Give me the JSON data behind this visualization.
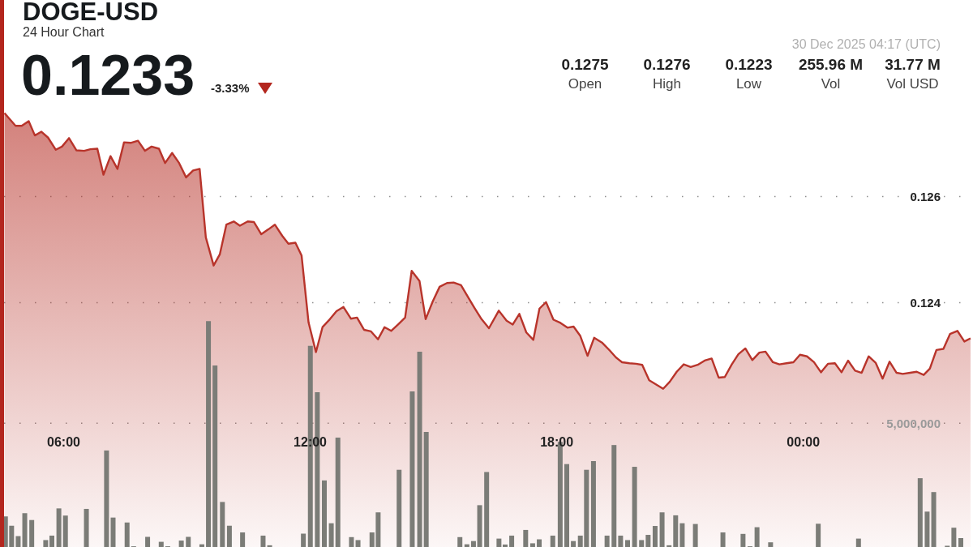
{
  "chart_data": {
    "type": "area",
    "title": "DOGE-USD",
    "subtitle": "24 Hour Chart",
    "annotations": [
      "0.1233",
      "-3.33%",
      "30 Dec 2025 04:17 (UTC)",
      "0.1275",
      "Open",
      "0.1276",
      "High",
      "0.1223",
      "Low",
      "255.96 M",
      "Vol",
      "31.77 M",
      "Vol USD"
    ],
    "xlim": [
      4.55,
      28.13
    ],
    "xticks": [
      {
        "value": 6,
        "label": "06:00"
      },
      {
        "value": 12,
        "label": "12:00"
      },
      {
        "value": 18,
        "label": "18:00"
      },
      {
        "value": 24,
        "label": "00:00"
      }
    ],
    "ylim": [
      0.1194,
      0.1297
    ],
    "yticks": [
      0.124,
      0.126
    ],
    "y2lim": [
      0,
      22100000
    ],
    "y2ticks": [
      {
        "value": 5000000,
        "label": "5,000,000"
      }
    ],
    "grid": "y",
    "series": [
      {
        "color": "#b8342b",
        "x": [
          4.56,
          4.83,
          4.98,
          5.15,
          5.3,
          5.46,
          5.62,
          5.81,
          5.96,
          6.13,
          6.31,
          6.5,
          6.65,
          6.82,
          6.97,
          7.14,
          7.31,
          7.47,
          7.63,
          7.81,
          7.98,
          8.14,
          8.32,
          8.47,
          8.64,
          8.81,
          8.98,
          9.15,
          9.31,
          9.46,
          9.65,
          9.8,
          9.96,
          10.14,
          10.29,
          10.48,
          10.63,
          10.81,
          10.98,
          11.14,
          11.32,
          11.47,
          11.64,
          11.79,
          11.96,
          12.14,
          12.3,
          12.48,
          12.64,
          12.81,
          12.99,
          13.14,
          13.31,
          13.48,
          13.65,
          13.81,
          13.97,
          14.15,
          14.31,
          14.47,
          14.66,
          14.81,
          14.98,
          15.15,
          15.33,
          15.49,
          15.67,
          15.83,
          16.0,
          16.17,
          16.35,
          16.59,
          16.78,
          16.93,
          17.09,
          17.26,
          17.43,
          17.58,
          17.74,
          17.92,
          18.09,
          18.26,
          18.41,
          18.57,
          18.75,
          18.91,
          19.1,
          19.29,
          19.44,
          19.59,
          19.77,
          19.93,
          20.08,
          20.25,
          20.42,
          20.59,
          20.75,
          20.92,
          21.09,
          21.26,
          21.43,
          21.6,
          21.77,
          21.94,
          22.09,
          22.26,
          22.42,
          22.59,
          22.76,
          22.93,
          23.08,
          23.26,
          23.42,
          23.59,
          23.76,
          23.92,
          24.09,
          24.26,
          24.43,
          24.6,
          24.77,
          24.93,
          25.09,
          25.26,
          25.42,
          25.59,
          25.76,
          25.93,
          26.1,
          26.27,
          26.42,
          26.6,
          26.76,
          26.93,
          27.08,
          27.24,
          27.41,
          27.57,
          27.75,
          27.92,
          28.07
        ],
        "values": [
          0.12757,
          0.12733,
          0.12733,
          0.12742,
          0.12715,
          0.12722,
          0.12711,
          0.12688,
          0.12694,
          0.1271,
          0.12687,
          0.12686,
          0.12689,
          0.1269,
          0.12641,
          0.12676,
          0.12652,
          0.12702,
          0.12701,
          0.12705,
          0.12686,
          0.12694,
          0.1269,
          0.12663,
          0.12682,
          0.12663,
          0.12636,
          0.12649,
          0.12652,
          0.12523,
          0.1247,
          0.12491,
          0.12547,
          0.12553,
          0.12545,
          0.12553,
          0.12552,
          0.12529,
          0.12538,
          0.12547,
          0.12526,
          0.12511,
          0.12513,
          0.12489,
          0.12363,
          0.12307,
          0.12354,
          0.12369,
          0.12384,
          0.12392,
          0.1237,
          0.12372,
          0.12349,
          0.12346,
          0.12331,
          0.12354,
          0.12347,
          0.1236,
          0.12372,
          0.1246,
          0.12441,
          0.12369,
          0.12402,
          0.1243,
          0.12437,
          0.12438,
          0.12433,
          0.12412,
          0.1239,
          0.12369,
          0.12352,
          0.12385,
          0.12366,
          0.12359,
          0.12379,
          0.12344,
          0.1233,
          0.12389,
          0.12401,
          0.12368,
          0.12362,
          0.12353,
          0.12355,
          0.12338,
          0.123,
          0.12334,
          0.12325,
          0.1231,
          0.12297,
          0.12288,
          0.12286,
          0.12285,
          0.12283,
          0.12254,
          0.12246,
          0.12238,
          0.12251,
          0.1227,
          0.12284,
          0.12279,
          0.12283,
          0.12291,
          0.12295,
          0.12259,
          0.1226,
          0.12284,
          0.12303,
          0.12314,
          0.12292,
          0.12306,
          0.12308,
          0.12288,
          0.12284,
          0.12286,
          0.12288,
          0.12302,
          0.12299,
          0.12288,
          0.12269,
          0.12285,
          0.12286,
          0.12269,
          0.12291,
          0.12272,
          0.12268,
          0.12299,
          0.12287,
          0.12257,
          0.12289,
          0.12268,
          0.12266,
          0.12268,
          0.1227,
          0.12264,
          0.12276,
          0.12311,
          0.12313,
          0.12341,
          0.12347,
          0.12327,
          0.12333
        ]
      },
      {
        "type": "bar",
        "axis": "y2",
        "color": "#7b7c77",
        "x": [
          4.58,
          4.73,
          4.89,
          5.05,
          5.22,
          5.56,
          5.71,
          5.88,
          6.04,
          6.55,
          7.04,
          7.2,
          7.54,
          7.7,
          8.04,
          8.37,
          8.53,
          8.86,
          9.03,
          9.36,
          9.52,
          9.68,
          9.86,
          10.03,
          10.35,
          10.85,
          11.01,
          11.83,
          12.0,
          12.17,
          12.34,
          12.51,
          12.67,
          13.0,
          13.16,
          13.5,
          13.65,
          14.16,
          14.48,
          14.66,
          14.82,
          15.64,
          15.81,
          15.97,
          16.12,
          16.29,
          16.59,
          16.74,
          16.9,
          17.24,
          17.41,
          17.57,
          17.9,
          18.08,
          18.24,
          18.4,
          18.57,
          18.72,
          18.89,
          19.22,
          19.39,
          19.55,
          19.72,
          19.89,
          20.06,
          20.22,
          20.39,
          20.56,
          20.73,
          20.89,
          21.05,
          21.37,
          22.04,
          22.53,
          22.7,
          22.87,
          23.2,
          24.36,
          25.34,
          26.84,
          27.01,
          27.17,
          27.5,
          27.66,
          27.83
        ],
        "values": [
          1240000,
          860000,
          440000,
          1370000,
          1090000,
          280000,
          460000,
          1560000,
          1270000,
          1540000,
          3900000,
          1190000,
          990000,
          30000,
          410000,
          210000,
          30000,
          260000,
          410000,
          110000,
          9130000,
          7330000,
          1820000,
          860000,
          590000,
          460000,
          70000,
          540000,
          8130000,
          6250000,
          2690000,
          960000,
          4420000,
          400000,
          280000,
          590000,
          1400000,
          3120000,
          6290000,
          7890000,
          4650000,
          400000,
          110000,
          240000,
          1690000,
          3030000,
          340000,
          100000,
          460000,
          690000,
          150000,
          310000,
          460000,
          4250000,
          3350000,
          240000,
          460000,
          3120000,
          3470000,
          460000,
          4120000,
          460000,
          280000,
          3240000,
          280000,
          490000,
          850000,
          1400000,
          70000,
          1280000,
          960000,
          930000,
          590000,
          530000,
          30000,
          800000,
          190000,
          940000,
          340000,
          2780000,
          1430000,
          2220000,
          50000,
          780000,
          360000
        ]
      }
    ]
  }
}
